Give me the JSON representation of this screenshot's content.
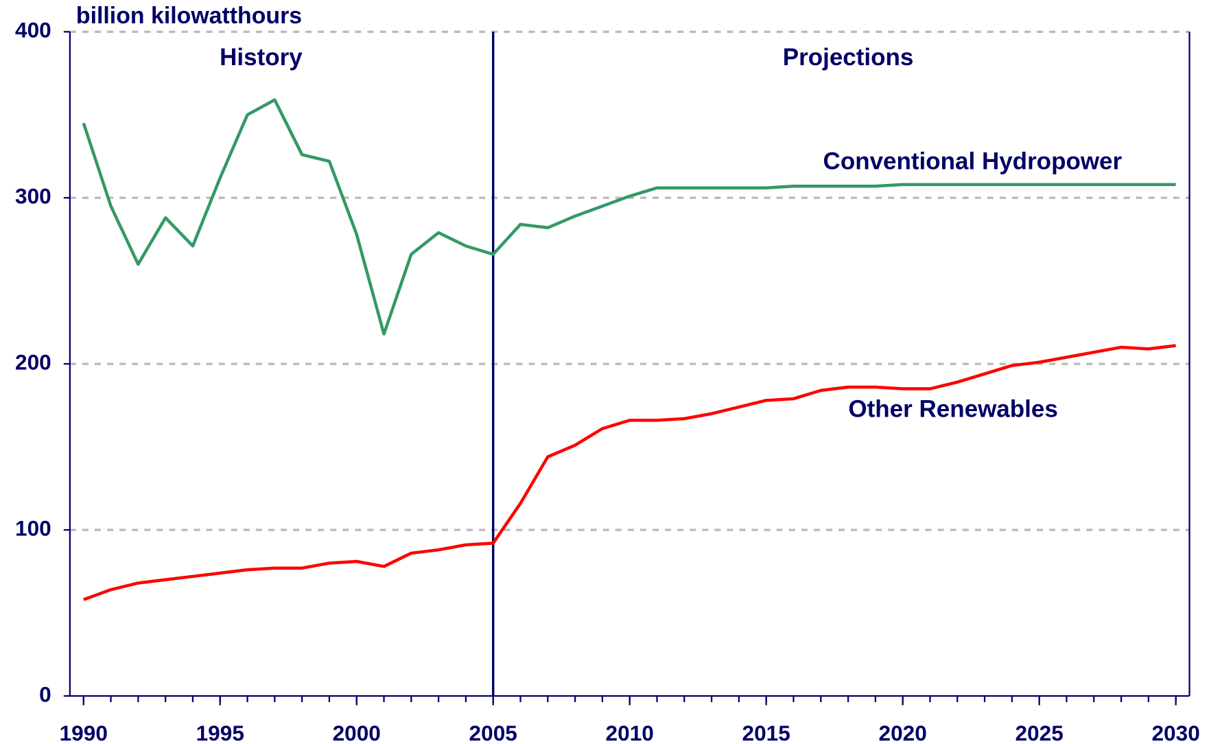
{
  "chart_data": {
    "type": "line",
    "y_label": "billion kilowatthours",
    "x": [
      1990,
      1991,
      1992,
      1993,
      1994,
      1995,
      1996,
      1997,
      1998,
      1999,
      2000,
      2001,
      2002,
      2003,
      2004,
      2005,
      2006,
      2007,
      2008,
      2009,
      2010,
      2011,
      2012,
      2013,
      2014,
      2015,
      2016,
      2017,
      2018,
      2019,
      2020,
      2021,
      2022,
      2023,
      2024,
      2025,
      2026,
      2027,
      2028,
      2029,
      2030
    ],
    "series": [
      {
        "name": "Conventional Hydropower",
        "color": "#339966",
        "values": [
          345,
          295,
          260,
          288,
          271,
          312,
          350,
          359,
          326,
          322,
          278,
          218,
          266,
          279,
          271,
          266,
          284,
          282,
          289,
          295,
          301,
          306,
          306,
          306,
          306,
          306,
          307,
          307,
          307,
          307,
          308,
          308,
          308,
          308,
          308,
          308,
          308,
          308,
          308,
          308,
          308
        ]
      },
      {
        "name": "Other Renewables",
        "color": "#ff0000",
        "values": [
          58,
          64,
          68,
          70,
          72,
          74,
          76,
          77,
          77,
          80,
          81,
          78,
          86,
          88,
          91,
          92,
          116,
          144,
          151,
          161,
          166,
          166,
          167,
          170,
          174,
          178,
          179,
          184,
          186,
          186,
          185,
          185,
          189,
          194,
          199,
          201,
          204,
          207,
          210,
          209,
          211
        ]
      }
    ],
    "annotations": [
      {
        "text": "History",
        "x": 1996.5
      },
      {
        "text": "Projections",
        "x": 2018
      }
    ],
    "divider_x": 2005,
    "xlim": [
      1989.5,
      2030.5
    ],
    "xticks": [
      1990,
      1995,
      2000,
      2005,
      2010,
      2015,
      2020,
      2025,
      2030
    ],
    "ylim": [
      0,
      400
    ],
    "yticks": [
      0,
      100,
      200,
      300,
      400
    ],
    "grid": true
  }
}
